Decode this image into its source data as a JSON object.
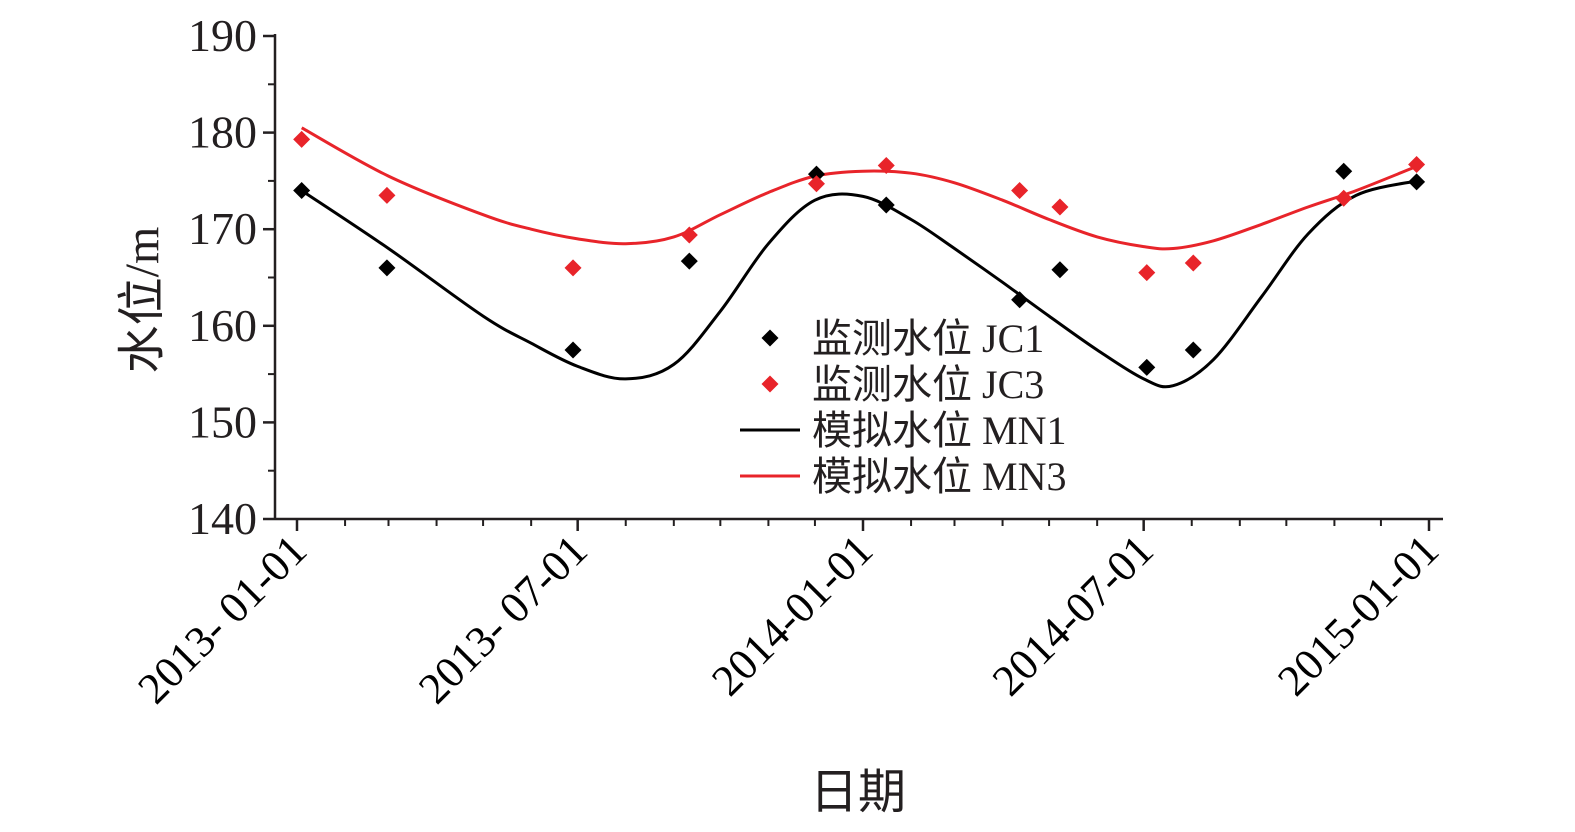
{
  "chart_data": {
    "type": "line",
    "title": "",
    "xlabel": "日期",
    "ylabel": "水位/m",
    "ylim": [
      140,
      190
    ],
    "yticks": [
      "140",
      "150",
      "160",
      "170",
      "180",
      "190"
    ],
    "xlim": [
      "2013-01-01",
      "2015-01-01"
    ],
    "xticks": [
      "2013- 01-01",
      "2013- 07-01",
      "2014-01-01",
      "2014-07-01",
      "2015-01-01"
    ],
    "legend_position": "center",
    "series": [
      {
        "name": "监测水位 JC1",
        "kind": "scatter",
        "color": "#000000",
        "marker": "diamond",
        "x": [
          "2013-01-04",
          "2013-02-28",
          "2013-06-28",
          "2013-09-11",
          "2013-12-02",
          "2014-01-16",
          "2014-04-12",
          "2014-05-08",
          "2014-07-03",
          "2014-08-02",
          "2014-11-07",
          "2014-12-24"
        ],
        "y": [
          174.0,
          166.0,
          157.5,
          166.7,
          175.7,
          172.5,
          162.7,
          165.8,
          155.7,
          157.5,
          176.0,
          174.9
        ]
      },
      {
        "name": "监测水位 JC3",
        "kind": "scatter",
        "color": "#e8242a",
        "marker": "diamond",
        "x": [
          "2013-01-04",
          "2013-02-28",
          "2013-06-28",
          "2013-09-11",
          "2013-12-02",
          "2014-01-16",
          "2014-04-12",
          "2014-05-08",
          "2014-07-03",
          "2014-08-02",
          "2014-11-07",
          "2014-12-24"
        ],
        "y": [
          179.3,
          173.5,
          166.0,
          169.4,
          174.7,
          176.6,
          174.0,
          172.3,
          165.5,
          166.5,
          173.2,
          176.7
        ]
      },
      {
        "name": "模拟水位 MN1",
        "kind": "line",
        "color": "#000000",
        "x": [
          "2013-01-04",
          "2013-03-01",
          "2013-05-01",
          "2013-06-01",
          "2013-07-01",
          "2013-08-01",
          "2013-09-01",
          "2013-10-01",
          "2013-11-01",
          "2013-12-01",
          "2014-01-01",
          "2014-02-01",
          "2014-03-01",
          "2014-04-01",
          "2014-05-01",
          "2014-06-01",
          "2014-07-01",
          "2014-07-20",
          "2014-08-15",
          "2014-09-15",
          "2014-10-15",
          "2014-11-15",
          "2014-12-24"
        ],
        "y": [
          174.0,
          168.0,
          161.0,
          158.2,
          155.8,
          154.5,
          156.0,
          161.5,
          168.5,
          173.0,
          173.4,
          171.0,
          168.0,
          164.5,
          161.0,
          157.5,
          154.5,
          153.8,
          156.5,
          163.0,
          169.5,
          173.5,
          175.0
        ]
      },
      {
        "name": "模拟水位 MN3",
        "kind": "line",
        "color": "#e8242a",
        "x": [
          "2013-01-04",
          "2013-03-01",
          "2013-05-01",
          "2013-06-01",
          "2013-07-01",
          "2013-08-01",
          "2013-09-01",
          "2013-10-01",
          "2013-11-01",
          "2013-12-01",
          "2014-01-01",
          "2014-02-01",
          "2014-03-01",
          "2014-04-01",
          "2014-05-01",
          "2014-06-01",
          "2014-07-01",
          "2014-07-20",
          "2014-08-15",
          "2014-09-15",
          "2014-10-15",
          "2014-11-15",
          "2014-12-24"
        ],
        "y": [
          180.5,
          175.5,
          171.5,
          170.0,
          169.0,
          168.5,
          169.2,
          171.5,
          173.8,
          175.5,
          176.0,
          175.8,
          174.8,
          173.0,
          171.0,
          169.2,
          168.2,
          168.0,
          168.8,
          170.5,
          172.3,
          174.0,
          176.5
        ]
      }
    ]
  }
}
